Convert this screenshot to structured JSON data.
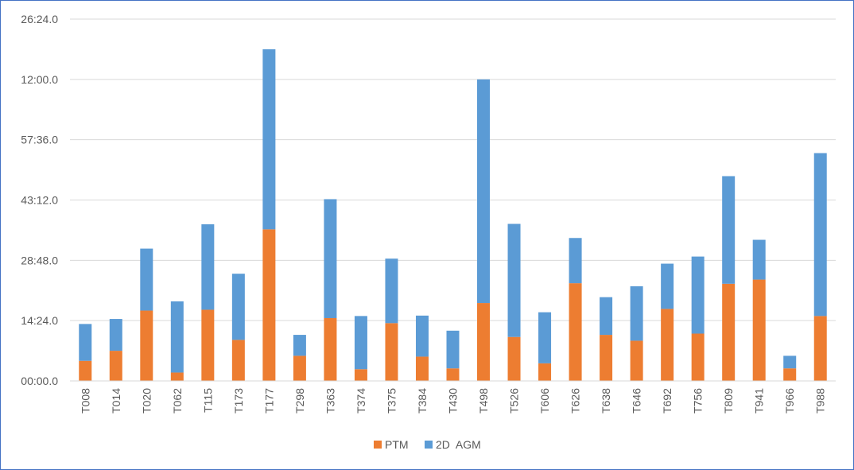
{
  "chart_data": {
    "type": "bar",
    "stacked": true,
    "categories": [
      "T008",
      "T014",
      "T020",
      "T062",
      "T115",
      "T173",
      "T177",
      "T298",
      "T363",
      "T374",
      "T375",
      "T384",
      "T430",
      "T498",
      "T526",
      "T606",
      "T626",
      "T638",
      "T646",
      "T692",
      "T756",
      "T809",
      "T941",
      "T966",
      "T988"
    ],
    "series": [
      {
        "name": "PTM",
        "color": "#ed7d31",
        "values": [
          288,
          432,
          1008,
          120,
          1020,
          588,
          2172,
          360,
          900,
          168,
          828,
          348,
          180,
          1116,
          630,
          252,
          1400,
          660,
          576,
          1032,
          678,
          1392,
          1452,
          180,
          930
        ]
      },
      {
        "name": "2D  AGM",
        "color": "#5b9bd5",
        "values": [
          528,
          456,
          888,
          1020,
          1224,
          948,
          2580,
          300,
          1704,
          762,
          924,
          588,
          540,
          3204,
          1620,
          732,
          648,
          540,
          780,
          648,
          1104,
          1542,
          570,
          180,
          2334
        ]
      }
    ],
    "y_ticks": [
      "00:00.0",
      "14:24.0",
      "28:48.0",
      "43:12.0",
      "57:36.0",
      "12:00.0",
      "26:24.0"
    ],
    "ylim": [
      0,
      5184
    ],
    "y_tick_step": 864,
    "grid": true,
    "legend_position": "bottom",
    "title": "",
    "xlabel": "",
    "ylabel": ""
  }
}
